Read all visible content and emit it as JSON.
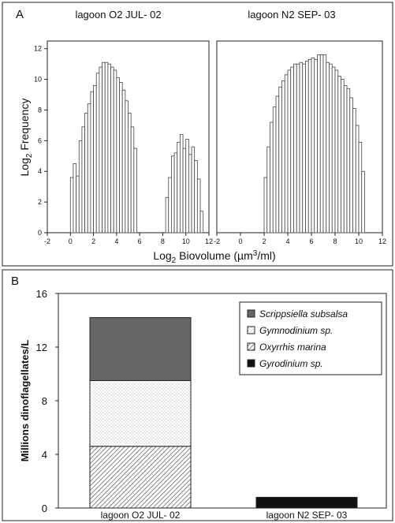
{
  "chart_data": [
    {
      "type": "bar",
      "panel_label": "A",
      "title": "lagoon O2  JUL- 02",
      "xlabel": "Log",
      "xlabel_sub": "2",
      "xlabel_rest": " Biovolume (µm",
      "xlabel_sup": "3",
      "xlabel_end": "/ml)",
      "ylabel": "Log",
      "ylabel_sub": "2",
      "ylabel_rest": " Frequency",
      "xlim": [
        -2,
        12
      ],
      "ylim": [
        0,
        12.5
      ],
      "xticks": [
        "-2",
        "0",
        "2",
        "4",
        "6",
        "8",
        "10",
        "12"
      ],
      "yticks": [
        "0",
        "2",
        "4",
        "6",
        "8",
        "10",
        "12"
      ],
      "bin_width": 0.25,
      "x": [
        0,
        0.25,
        0.5,
        0.75,
        1,
        1.25,
        1.5,
        1.75,
        2,
        2.25,
        2.5,
        2.75,
        3,
        3.25,
        3.5,
        3.75,
        4,
        4.25,
        4.5,
        4.75,
        5,
        5.25,
        5.5,
        8.25,
        8.5,
        8.75,
        9,
        9.25,
        9.5,
        9.75,
        10,
        10.25,
        10.5,
        10.75,
        11,
        11.25
      ],
      "values": [
        3.6,
        4.5,
        3.7,
        6.0,
        6.9,
        7.8,
        8.4,
        9.2,
        9.6,
        10.4,
        10.8,
        11.1,
        11.1,
        11.0,
        10.8,
        10.6,
        10.1,
        9.8,
        9.3,
        8.6,
        7.8,
        6.9,
        5.5,
        2.3,
        3.6,
        5.0,
        5.2,
        5.9,
        6.4,
        5.5,
        6.1,
        5.1,
        5.6,
        4.7,
        3.5,
        1.4
      ]
    },
    {
      "type": "bar",
      "title": "lagoon N2  SEP- 03",
      "xlim": [
        -2,
        12
      ],
      "ylim": [
        0,
        12.5
      ],
      "xticks": [
        "-2",
        "0",
        "2",
        "4",
        "6",
        "8",
        "10",
        "12"
      ],
      "bin_width": 0.25,
      "x": [
        2,
        2.25,
        2.5,
        2.75,
        3,
        3.25,
        3.5,
        3.75,
        4,
        4.25,
        4.5,
        4.75,
        5,
        5.25,
        5.5,
        5.75,
        6,
        6.25,
        6.5,
        6.75,
        7,
        7.25,
        7.5,
        7.75,
        8,
        8.25,
        8.5,
        8.75,
        9,
        9.25,
        9.5,
        9.75,
        10,
        10.25
      ],
      "values": [
        3.6,
        5.6,
        7.2,
        8.2,
        8.9,
        9.5,
        9.9,
        10.3,
        10.6,
        10.8,
        11.0,
        11.0,
        11.1,
        11.0,
        11.2,
        11.3,
        11.4,
        11.3,
        11.6,
        11.6,
        11.6,
        11.1,
        11.0,
        10.8,
        10.6,
        10.2,
        10.0,
        9.6,
        9.4,
        8.8,
        8.1,
        7.0,
        5.9,
        4.0
      ]
    },
    {
      "type": "bar",
      "stacked": true,
      "panel_label": "B",
      "ylabel": "Millions dinoflagellates/L",
      "ylim": [
        0,
        16
      ],
      "yticks": [
        "0",
        "4",
        "8",
        "12",
        "16"
      ],
      "categories": [
        "lagoon O2  JUL- 02",
        "lagoon N2  SEP- 03"
      ],
      "legend_position": "top-right",
      "series": [
        {
          "name": "Gyrodinium sp.",
          "values": [
            0,
            0.8
          ],
          "color": "#111111",
          "pattern": "solid"
        },
        {
          "name": "Oxyrrhis marina",
          "values": [
            4.6,
            0
          ],
          "color": "#ffffff",
          "pattern": "hatch"
        },
        {
          "name": "Gymnodinium sp.",
          "values": [
            4.9,
            0
          ],
          "color": "#ffffff",
          "pattern": "dots"
        },
        {
          "name": "Scrippsiella subsalsa",
          "values": [
            4.7,
            0
          ],
          "color": "#666666",
          "pattern": "solid"
        }
      ],
      "legend_order": [
        "Scrippsiella subsalsa",
        "Gymnodinium sp.",
        "Oxyrrhis marina",
        "Gyrodinium sp."
      ]
    }
  ]
}
